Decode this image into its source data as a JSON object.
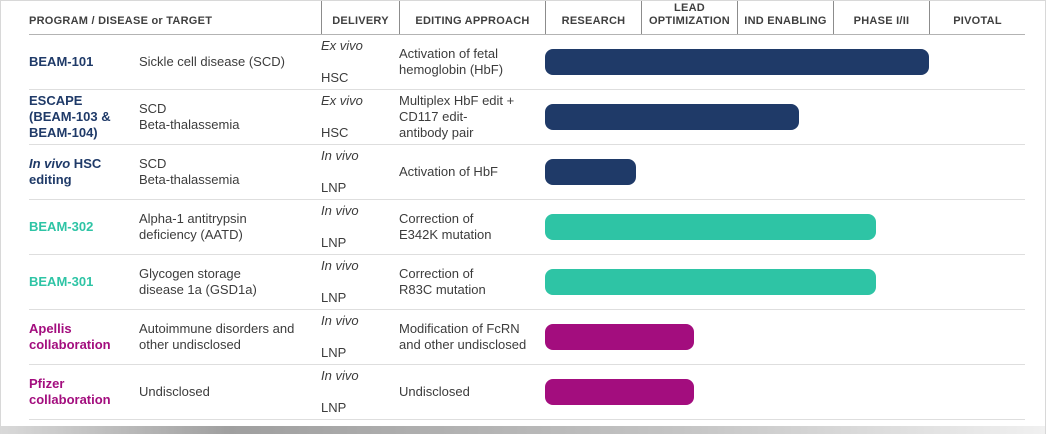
{
  "colors": {
    "navy": "#1f3a68",
    "teal": "#2ec4a5",
    "magenta": "#a30d7e"
  },
  "header": {
    "program_disease": "PROGRAM / DISEASE or TARGET",
    "delivery": "DELIVERY",
    "approach": "EDITING APPROACH",
    "stages": [
      "RESEARCH",
      "LEAD\nOPTIMIZATION",
      "IND ENABLING",
      "PHASE I/II",
      "PIVOTAL"
    ]
  },
  "rows": [
    {
      "program": "BEAM-101",
      "disease": "Sickle cell disease (SCD)",
      "delivery_mode": "Ex vivo",
      "delivery_vehicle": "HSC",
      "approach": "Activation of fetal\nhemoglobin (HbF)",
      "color_key": "navy",
      "bar_end_pct": 80
    },
    {
      "program": "ESCAPE\n(BEAM-103 &\nBEAM-104)",
      "disease": "SCD\nBeta-thalassemia",
      "delivery_mode": "Ex vivo",
      "delivery_vehicle": "HSC",
      "approach": "Multiplex HbF edit +\nCD117 edit-\nantibody pair",
      "color_key": "navy",
      "bar_end_pct": 53
    },
    {
      "program_italic": "In vivo",
      "program": " HSC\nediting",
      "disease": "SCD\nBeta-thalassemia",
      "delivery_mode": "In vivo",
      "delivery_vehicle": "LNP",
      "approach": "Activation of HbF",
      "color_key": "navy",
      "bar_end_pct": 19
    },
    {
      "program": "BEAM-302",
      "disease": "Alpha-1 antitrypsin\ndeficiency (AATD)",
      "delivery_mode": "In vivo",
      "delivery_vehicle": "LNP",
      "approach": "Correction of\nE342K mutation",
      "color_key": "teal",
      "bar_end_pct": 69
    },
    {
      "program": "BEAM-301",
      "disease": "Glycogen storage\ndisease 1a (GSD1a)",
      "delivery_mode": "In vivo",
      "delivery_vehicle": "LNP",
      "approach": "Correction of\nR83C mutation",
      "color_key": "teal",
      "bar_end_pct": 69
    },
    {
      "program": "Apellis\ncollaboration",
      "disease": "Autoimmune disorders and\nother undisclosed",
      "delivery_mode": "In vivo",
      "delivery_vehicle": "LNP",
      "approach": "Modification of FcRN\nand other undisclosed",
      "color_key": "magenta",
      "bar_end_pct": 31
    },
    {
      "program": "Pfizer\ncollaboration",
      "disease": "Undisclosed",
      "delivery_mode": "In vivo",
      "delivery_vehicle": "LNP",
      "approach": "Undisclosed",
      "color_key": "magenta",
      "bar_end_pct": 31
    }
  ],
  "chart_data": {
    "type": "bar",
    "orientation": "horizontal",
    "title": "",
    "categories": [
      "BEAM-101",
      "ESCAPE (BEAM-103 & BEAM-104)",
      "In vivo HSC editing",
      "BEAM-302",
      "BEAM-301",
      "Apellis collaboration",
      "Pfizer collaboration"
    ],
    "stage_axis": [
      "RESEARCH",
      "LEAD OPTIMIZATION",
      "IND ENABLING",
      "PHASE I/II",
      "PIVOTAL"
    ],
    "values_pct_of_track": [
      80,
      53,
      19,
      69,
      69,
      31,
      31
    ],
    "values_stage_units": [
      4.0,
      2.65,
      0.95,
      3.45,
      3.45,
      1.55,
      1.55
    ],
    "bar_colors": [
      "#1f3a68",
      "#1f3a68",
      "#1f3a68",
      "#2ec4a5",
      "#2ec4a5",
      "#a30d7e",
      "#a30d7e"
    ],
    "grid": false,
    "legend": false
  }
}
